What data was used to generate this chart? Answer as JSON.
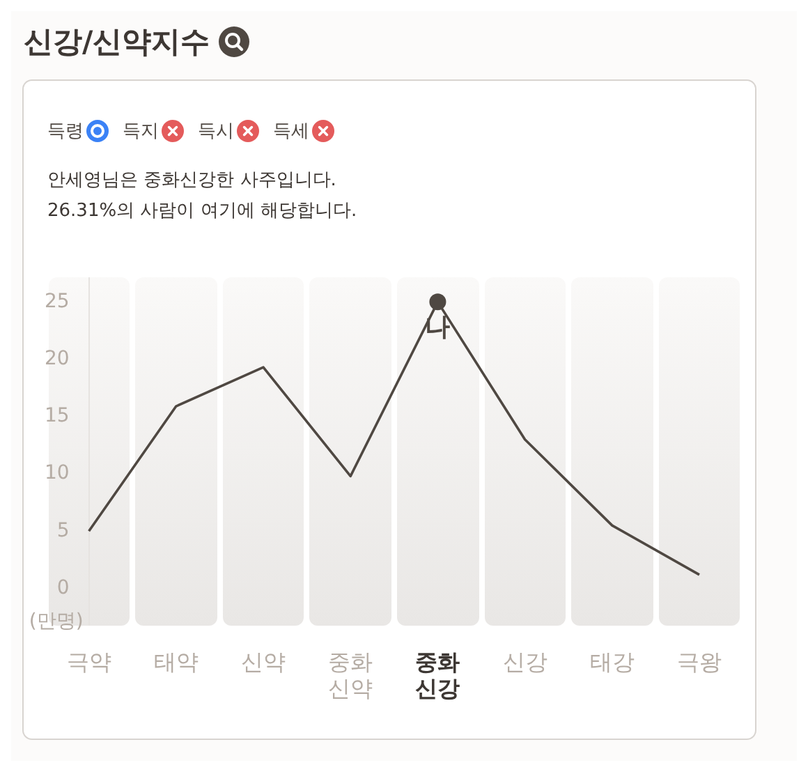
{
  "chart_data": {
    "type": "line",
    "title": "신강/신약지수",
    "subtitle": "안세영님은 중화신강한 사주입니다.",
    "categories": [
      "극약",
      "태약",
      "신약",
      "중화\n신약",
      "중화\n신강",
      "신강",
      "태강",
      "극왕"
    ],
    "values": [
      5,
      15.9,
      19.3,
      9.8,
      25,
      13,
      5.5,
      1.2
    ],
    "color": "#4f4842",
    "ylabel": "(만명)",
    "ylim": [
      -3.2,
      27.1
    ],
    "yticks": [
      0,
      5,
      10,
      15,
      20,
      25
    ],
    "grid": false,
    "legend": false,
    "marker": "none",
    "line_style": "solid",
    "annotations": [
      "득령",
      "득지",
      "득시",
      "득세",
      "26.31%의 사람이 여기에 해당합니다.",
      {
        "text": "나",
        "x": "중화\n신강",
        "y": 25
      }
    ]
  }
}
